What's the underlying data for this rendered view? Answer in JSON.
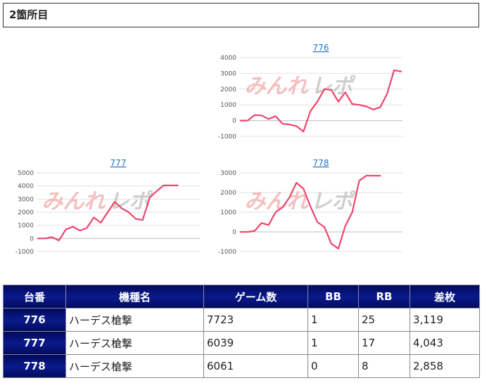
{
  "section": {
    "title": "2箇所目"
  },
  "watermark": {
    "left": "みんれ",
    "right": "レポ",
    "left_color": "#f3b5b5",
    "right_color": "#c9c9c9"
  },
  "chart_data": [
    {
      "type": "line",
      "title": "776",
      "ylim": [
        -1000,
        4000
      ],
      "yticks": [
        -1000,
        0,
        1000,
        2000,
        3000,
        4000
      ],
      "grid": true,
      "color": "#f0456b",
      "x": [
        0,
        1,
        2,
        3,
        4,
        5,
        6,
        7,
        8,
        9,
        10,
        11,
        12,
        13,
        14,
        15,
        16,
        17,
        18,
        19,
        20,
        21,
        22,
        23
      ],
      "values": [
        0,
        0,
        350,
        330,
        100,
        280,
        -200,
        -250,
        -350,
        -700,
        600,
        1200,
        2000,
        1950,
        1200,
        1800,
        1050,
        1000,
        900,
        700,
        850,
        1700,
        3200,
        3119
      ]
    },
    {
      "type": "line",
      "title": "777",
      "ylim": [
        -1000,
        5000
      ],
      "yticks": [
        -1000,
        0,
        1000,
        2000,
        3000,
        4000,
        5000
      ],
      "grid": true,
      "color": "#f0456b",
      "x": [
        0,
        1,
        2,
        3,
        4,
        5,
        6,
        7,
        8,
        9,
        10,
        11,
        12,
        13,
        14,
        15,
        16,
        17,
        18,
        19,
        20
      ],
      "values": [
        0,
        0,
        100,
        -150,
        700,
        900,
        600,
        800,
        1600,
        1200,
        2000,
        2800,
        2300,
        2000,
        1500,
        1400,
        3100,
        3600,
        4043,
        4043,
        4043
      ]
    },
    {
      "type": "line",
      "title": "778",
      "ylim": [
        -1000,
        3000
      ],
      "yticks": [
        -1000,
        0,
        1000,
        2000,
        3000
      ],
      "grid": true,
      "color": "#f0456b",
      "x": [
        0,
        1,
        2,
        3,
        4,
        5,
        6,
        7,
        8,
        9,
        10,
        11,
        12,
        13,
        14,
        15,
        16,
        17,
        18,
        19,
        20
      ],
      "values": [
        0,
        0,
        50,
        450,
        350,
        1000,
        1250,
        1750,
        2500,
        2200,
        1300,
        500,
        250,
        -600,
        -850,
        300,
        1000,
        2600,
        2858,
        2858,
        2858
      ]
    }
  ],
  "table": {
    "headers": [
      "台番",
      "機種名",
      "ゲーム数",
      "BB",
      "RB",
      "差枚"
    ],
    "rows": [
      [
        "776",
        "ハーデス槍撃",
        "7723",
        "1",
        "25",
        "3,119"
      ],
      [
        "777",
        "ハーデス槍撃",
        "6039",
        "1",
        "17",
        "4,043"
      ],
      [
        "778",
        "ハーデス槍撃",
        "6061",
        "0",
        "8",
        "2,858"
      ]
    ]
  }
}
